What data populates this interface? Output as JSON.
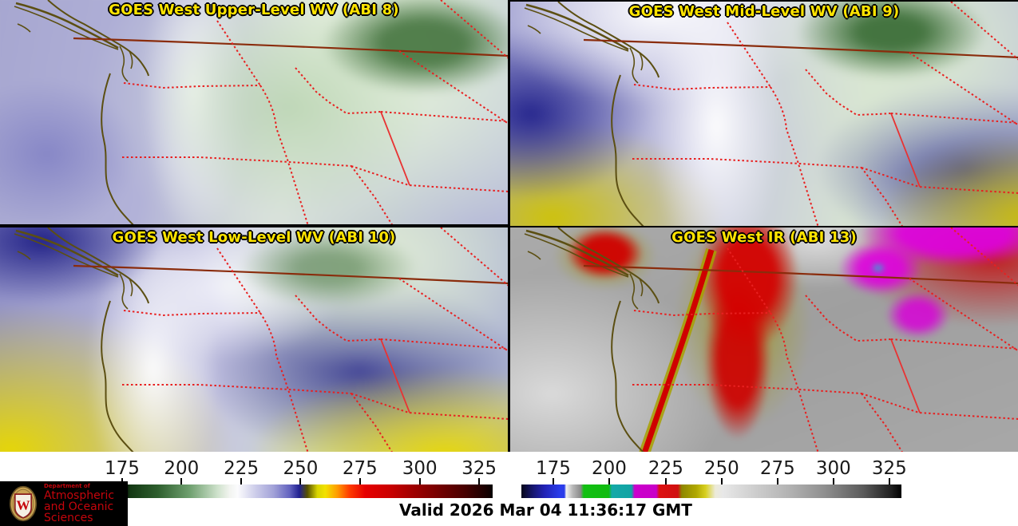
{
  "panels": [
    {
      "id": "abi8",
      "title": "GOES West Upper-Level WV (ABI 8)"
    },
    {
      "id": "abi9",
      "title": "GOES West Mid-Level WV (ABI 9)"
    },
    {
      "id": "abi10",
      "title": "GOES West Low-Level WV (ABI 10)"
    },
    {
      "id": "abi13",
      "title": "GOES West IR (ABI 13)"
    }
  ],
  "colorbars": {
    "wv": {
      "label_values": [
        "175",
        "200",
        "225",
        "250",
        "275",
        "300",
        "325"
      ],
      "tick_positions_pct": [
        7.0,
        21.9,
        36.9,
        51.8,
        66.7,
        81.7,
        96.6
      ],
      "stops": [
        [
          0,
          "#000000"
        ],
        [
          7.5,
          "#000000"
        ],
        [
          9,
          "#143814"
        ],
        [
          16,
          "#2e5f2e"
        ],
        [
          24,
          "#6fa06f"
        ],
        [
          31,
          "#cfe2cc"
        ],
        [
          34,
          "#f2f4f0"
        ],
        [
          36,
          "#fbfbfd"
        ],
        [
          40,
          "#d2d2ec"
        ],
        [
          45,
          "#a2a2d8"
        ],
        [
          49,
          "#6464c0"
        ],
        [
          51.5,
          "#202090"
        ],
        [
          53.5,
          "#565000"
        ],
        [
          56,
          "#d8d400"
        ],
        [
          58,
          "#f2e200"
        ],
        [
          61,
          "#ff9c00"
        ],
        [
          64,
          "#ff3c00"
        ],
        [
          68,
          "#e60000"
        ],
        [
          74,
          "#cc0000"
        ],
        [
          80,
          "#a00000"
        ],
        [
          86,
          "#780000"
        ],
        [
          93,
          "#480000"
        ],
        [
          98,
          "#1c0000"
        ],
        [
          100,
          "#080000"
        ]
      ]
    },
    "ir": {
      "label_values": [
        "175",
        "200",
        "225",
        "250",
        "275",
        "300",
        "325"
      ],
      "tick_positions_pct": [
        8.4,
        23.1,
        38.0,
        52.7,
        67.4,
        82.1,
        96.8
      ],
      "stops": [
        [
          0,
          "#06061a"
        ],
        [
          3,
          "#16166e"
        ],
        [
          6,
          "#2222b4"
        ],
        [
          10,
          "#2a3cea"
        ],
        [
          11.3,
          "#2a3cea"
        ],
        [
          11.8,
          "#f2f2f2"
        ],
        [
          13.5,
          "#b8b8b8"
        ],
        [
          15.6,
          "#8a8a8a"
        ],
        [
          16.4,
          "#12c012"
        ],
        [
          23,
          "#10bb10"
        ],
        [
          23.8,
          "#14a8a8"
        ],
        [
          29,
          "#12a4a4"
        ],
        [
          29.8,
          "#cc00cc"
        ],
        [
          35.5,
          "#c800c8"
        ],
        [
          36.3,
          "#dd1111"
        ],
        [
          41.2,
          "#d01010"
        ],
        [
          42.2,
          "#8e8600"
        ],
        [
          46,
          "#b0a800"
        ],
        [
          48.5,
          "#d8d020"
        ],
        [
          51,
          "#ecead8"
        ],
        [
          53,
          "#e8e8e8"
        ],
        [
          60,
          "#d2d2d2"
        ],
        [
          70,
          "#b4b4b4"
        ],
        [
          80,
          "#8e8e8e"
        ],
        [
          90,
          "#5a5a5a"
        ],
        [
          97,
          "#222222"
        ],
        [
          100,
          "#000000"
        ]
      ]
    }
  },
  "footer": {
    "valid_text": "Valid 2026 Mar 04 11:36:17 GMT"
  },
  "logo": {
    "dept_label": "Department of",
    "line1": "Atmospheric",
    "line2": "and Oceanic Sciences",
    "crest_letter": "W"
  },
  "colors": {
    "panel_title": "#ffe400",
    "title_outline": "#000000",
    "coastline": "#5c4f12",
    "canada_border": "#8a2c0c",
    "state_border": "#e82020",
    "uw_red": "#c5050c",
    "footer_background": "#ffffff",
    "divider": "#000000"
  }
}
